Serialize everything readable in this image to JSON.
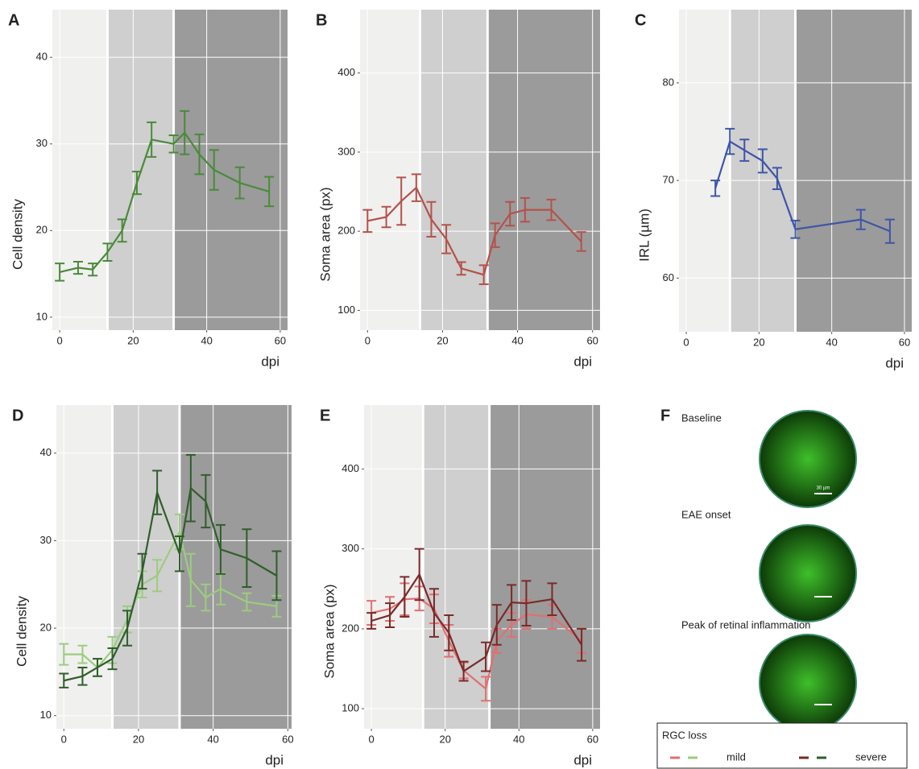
{
  "chart_data": [
    {
      "type": "line",
      "title": "A",
      "xlabel": "dpi",
      "ylabel": "Cell density",
      "xlim": [
        -2,
        62
      ],
      "xticks": [
        0,
        20,
        40,
        60
      ],
      "ylim": [
        8.5,
        45.5
      ],
      "yticks": [
        10,
        20,
        30,
        40
      ],
      "grid": true,
      "regions": [
        {
          "from": -2,
          "to": 13,
          "color": "#f0f0ef"
        },
        {
          "from": 13,
          "to": 31,
          "color": "#cfcfcf"
        },
        {
          "from": 31,
          "to": 62,
          "color": "#9b9b9b"
        }
      ],
      "x": [
        0,
        5,
        9,
        13,
        17,
        21,
        25,
        31,
        34,
        38,
        42,
        49,
        57
      ],
      "series": [
        {
          "color": "#4a8a3a",
          "values": [
            15.2,
            15.7,
            15.5,
            17.5,
            20,
            25.5,
            30.5,
            30,
            31.3,
            28.8,
            27,
            25.5,
            24.5
          ],
          "errors": [
            1,
            0.7,
            0.7,
            1,
            1.3,
            1.3,
            2,
            1,
            2.5,
            2.3,
            2.3,
            1.8,
            1.7
          ]
        }
      ]
    },
    {
      "type": "line",
      "title": "B",
      "xlabel": "dpi",
      "ylabel": "Soma area (px)",
      "xlim": [
        -2,
        62
      ],
      "xticks": [
        0,
        20,
        40,
        60
      ],
      "ylim": [
        75,
        480
      ],
      "yticks": [
        100,
        200,
        300,
        400
      ],
      "grid": true,
      "regions": [
        {
          "from": -2,
          "to": 14,
          "color": "#f0f0ef"
        },
        {
          "from": 14,
          "to": 32,
          "color": "#cfcfcf"
        },
        {
          "from": 32,
          "to": 62,
          "color": "#9b9b9b"
        }
      ],
      "x": [
        0,
        5,
        9,
        13,
        17,
        21,
        25,
        31,
        34,
        38,
        42,
        49,
        57
      ],
      "series": [
        {
          "color": "#b5524a",
          "values": [
            213,
            218,
            238,
            255,
            215,
            190,
            153,
            145,
            195,
            222,
            227,
            227,
            187
          ],
          "errors": [
            14,
            13,
            30,
            17,
            22,
            18,
            8,
            12,
            15,
            15,
            15,
            13,
            12
          ]
        }
      ]
    },
    {
      "type": "line",
      "title": "C",
      "xlabel": "dpi",
      "ylabel": "IRL (µm)",
      "xlim": [
        -2,
        62
      ],
      "xticks": [
        0,
        20,
        40,
        60
      ],
      "ylim": [
        54.5,
        87.5
      ],
      "yticks": [
        60,
        70,
        80
      ],
      "grid": true,
      "regions": [
        {
          "from": -2,
          "to": 12,
          "color": "#f0f0ef"
        },
        {
          "from": 12,
          "to": 30,
          "color": "#cfcfcf"
        },
        {
          "from": 30,
          "to": 62,
          "color": "#9b9b9b"
        }
      ],
      "x": [
        8,
        12,
        16,
        21,
        25,
        30,
        48,
        56
      ],
      "series": [
        {
          "color": "#3f55a6",
          "values": [
            69.2,
            74,
            73.1,
            72,
            70.2,
            65,
            66,
            64.8
          ],
          "errors": [
            0.8,
            1.3,
            1.1,
            1.2,
            1.1,
            0.9,
            1,
            1.2
          ]
        }
      ]
    },
    {
      "type": "line",
      "title": "D",
      "xlabel": "dpi",
      "ylabel": "Cell density",
      "xlim": [
        -2,
        61
      ],
      "xticks": [
        0,
        20,
        40,
        60
      ],
      "ylim": [
        8.5,
        45.5
      ],
      "yticks": [
        10,
        20,
        30,
        40
      ],
      "grid": true,
      "regions": [
        {
          "from": -2,
          "to": 13,
          "color": "#f0f0ef"
        },
        {
          "from": 13,
          "to": 31,
          "color": "#cfcfcf"
        },
        {
          "from": 31,
          "to": 61,
          "color": "#9b9b9b"
        }
      ],
      "x": [
        0,
        5,
        9,
        13,
        17,
        21,
        25,
        31,
        34,
        38,
        42,
        49,
        57
      ],
      "series": [
        {
          "color": "#9ccc7f",
          "values": [
            17,
            17,
            15.5,
            17.5,
            21,
            25,
            26,
            31,
            25.5,
            23.5,
            24.5,
            23,
            22.5
          ],
          "errors": [
            1.2,
            1,
            1,
            1.5,
            1.5,
            1.5,
            1.8,
            2,
            3,
            1.5,
            1.8,
            1,
            1.2
          ]
        },
        {
          "color": "#2f5e2a",
          "values": [
            14,
            14.5,
            15.5,
            16.5,
            20,
            26.5,
            35.5,
            28.5,
            36,
            34.5,
            29,
            28,
            26
          ],
          "errors": [
            0.8,
            1,
            1,
            1.2,
            2,
            2,
            2.5,
            2,
            3.8,
            3,
            2.8,
            3.3,
            2.8
          ]
        }
      ]
    },
    {
      "type": "line",
      "title": "E",
      "xlabel": "dpi",
      "ylabel": "Soma area (px)",
      "xlim": [
        -2,
        62
      ],
      "xticks": [
        0,
        20,
        40,
        60
      ],
      "ylim": [
        75,
        480
      ],
      "yticks": [
        100,
        200,
        300,
        400
      ],
      "grid": true,
      "regions": [
        {
          "from": -2,
          "to": 14,
          "color": "#f0f0ef"
        },
        {
          "from": 14,
          "to": 32,
          "color": "#cfcfcf"
        },
        {
          "from": 32,
          "to": 62,
          "color": "#9b9b9b"
        }
      ],
      "x": [
        0,
        5,
        9,
        13,
        17,
        21,
        25,
        31,
        34,
        38,
        42,
        49,
        57
      ],
      "series": [
        {
          "color": "#e07070",
          "values": [
            220,
            225,
            237,
            238,
            225,
            185,
            148,
            125,
            185,
            205,
            218,
            215,
            185
          ],
          "errors": [
            15,
            15,
            20,
            15,
            18,
            20,
            10,
            15,
            15,
            15,
            18,
            15,
            15
          ]
        },
        {
          "color": "#7b2a2a",
          "values": [
            210,
            217,
            240,
            268,
            220,
            195,
            147,
            165,
            205,
            233,
            232,
            237,
            180
          ],
          "errors": [
            10,
            15,
            25,
            32,
            30,
            22,
            12,
            18,
            25,
            22,
            28,
            20,
            20
          ]
        }
      ]
    }
  ],
  "panel_f": {
    "title": "F",
    "images": [
      {
        "label": "Baseline"
      },
      {
        "label": "EAE onset"
      },
      {
        "label": "Peak of retinal inflammation"
      }
    ],
    "scale_bar": "30 µm",
    "legend": {
      "title": "RGC loss",
      "entries": [
        {
          "label": "mild",
          "colors": [
            "#e07070",
            "#9ccc7f"
          ]
        },
        {
          "label": "severe",
          "colors": [
            "#7b2a2a",
            "#2f5e2a"
          ]
        }
      ]
    }
  }
}
